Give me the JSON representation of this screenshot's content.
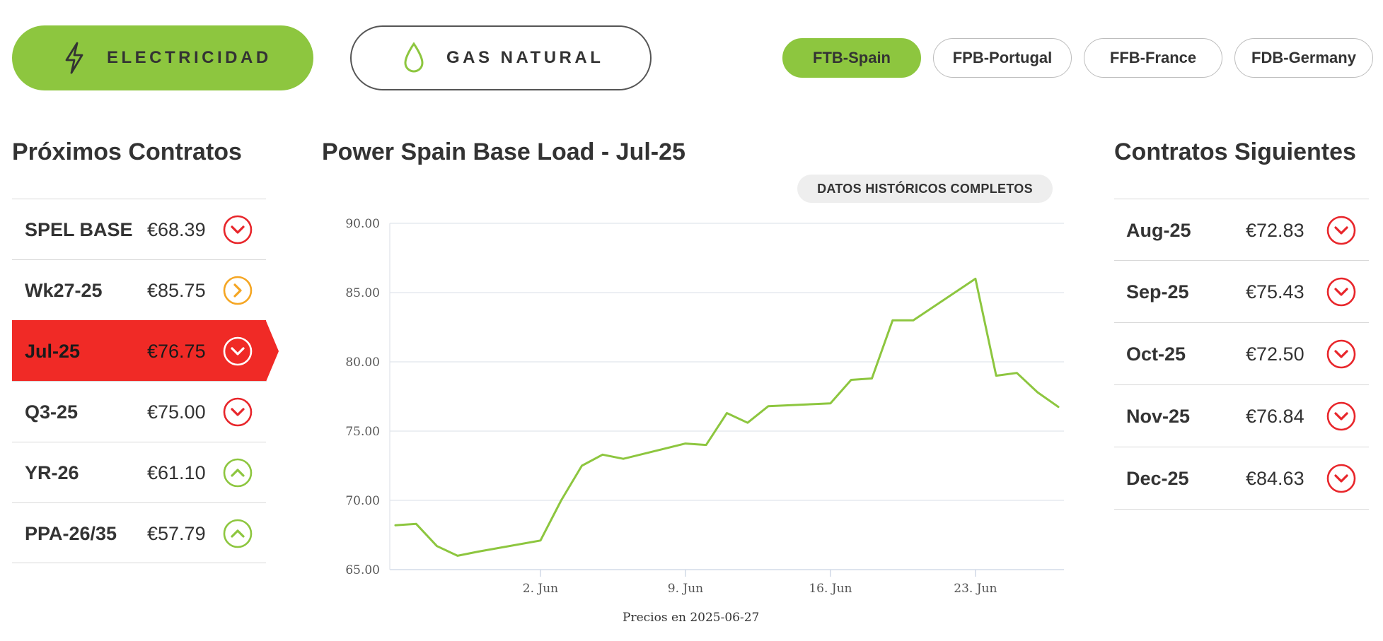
{
  "commodities": [
    {
      "label": "ELECTRICIDAD",
      "icon": "lightning-icon",
      "active": true
    },
    {
      "label": "GAS NATURAL",
      "icon": "droplet-icon",
      "active": false
    }
  ],
  "markets": [
    {
      "label": "FTB-Spain",
      "active": true
    },
    {
      "label": "FPB-Portugal",
      "active": false
    },
    {
      "label": "FFB-France",
      "active": false
    },
    {
      "label": "FDB-Germany",
      "active": false
    }
  ],
  "left_panel": {
    "title": "Próximos Contratos",
    "items": [
      {
        "name": "SPEL BASE",
        "price": "€68.39",
        "trend": "down",
        "active": false
      },
      {
        "name": "Wk27-25",
        "price": "€85.75",
        "trend": "flat",
        "active": false
      },
      {
        "name": "Jul-25",
        "price": "€76.75",
        "trend": "down",
        "active": true
      },
      {
        "name": "Q3-25",
        "price": "€75.00",
        "trend": "down",
        "active": false
      },
      {
        "name": "YR-26",
        "price": "€61.10",
        "trend": "up",
        "active": false
      },
      {
        "name": "PPA-26/35",
        "price": "€57.79",
        "trend": "up",
        "active": false
      }
    ]
  },
  "right_panel": {
    "title": "Contratos Siguientes",
    "items": [
      {
        "name": "Aug-25",
        "price": "€72.83",
        "trend": "down"
      },
      {
        "name": "Sep-25",
        "price": "€75.43",
        "trend": "down"
      },
      {
        "name": "Oct-25",
        "price": "€72.50",
        "trend": "down"
      },
      {
        "name": "Nov-25",
        "price": "€76.84",
        "trend": "down"
      },
      {
        "name": "Dec-25",
        "price": "€84.63",
        "trend": "down"
      }
    ]
  },
  "history_button": "DATOS HISTÓRICOS COMPLETOS",
  "footnote": "Precios en 2025-06-27",
  "colors": {
    "brand_green": "#8dc63f",
    "down_red": "#e8262b",
    "flat_orange": "#f5a623",
    "active_row": "#f02a26"
  },
  "chart_data": {
    "type": "line",
    "title": "Power Spain Base Load - Jul-25",
    "xlabel": "",
    "ylabel": "",
    "ylim": [
      65,
      90
    ],
    "y_ticks": [
      "90.00",
      "85.00",
      "80.00",
      "75.00",
      "70.00",
      "65.00"
    ],
    "y_tick_values": [
      90,
      85,
      80,
      75,
      70,
      65
    ],
    "x_ticks": [
      {
        "label": "2. Jun",
        "date": "2025-06-02"
      },
      {
        "label": "9. Jun",
        "date": "2025-06-09"
      },
      {
        "label": "16. Jun",
        "date": "2025-06-16"
      },
      {
        "label": "23. Jun",
        "date": "2025-06-23"
      }
    ],
    "xlim": [
      "2025-05-26",
      "2025-06-27"
    ],
    "grid": true,
    "series": [
      {
        "color": "#8dc63f",
        "points": [
          {
            "x": "2025-05-26",
            "y": 68.2
          },
          {
            "x": "2025-05-27",
            "y": 68.3
          },
          {
            "x": "2025-05-28",
            "y": 66.7
          },
          {
            "x": "2025-05-29",
            "y": 66.0
          },
          {
            "x": "2025-05-30",
            "y": 66.3
          },
          {
            "x": "2025-06-02",
            "y": 67.1
          },
          {
            "x": "2025-06-03",
            "y": 70.0
          },
          {
            "x": "2025-06-04",
            "y": 72.5
          },
          {
            "x": "2025-06-05",
            "y": 73.3
          },
          {
            "x": "2025-06-06",
            "y": 73.0
          },
          {
            "x": "2025-06-09",
            "y": 74.1
          },
          {
            "x": "2025-06-10",
            "y": 74.0
          },
          {
            "x": "2025-06-11",
            "y": 76.3
          },
          {
            "x": "2025-06-12",
            "y": 75.6
          },
          {
            "x": "2025-06-13",
            "y": 76.8
          },
          {
            "x": "2025-06-16",
            "y": 77.0
          },
          {
            "x": "2025-06-17",
            "y": 78.7
          },
          {
            "x": "2025-06-18",
            "y": 78.8
          },
          {
            "x": "2025-06-19",
            "y": 83.0
          },
          {
            "x": "2025-06-20",
            "y": 83.0
          },
          {
            "x": "2025-06-23",
            "y": 86.0
          },
          {
            "x": "2025-06-24",
            "y": 79.0
          },
          {
            "x": "2025-06-25",
            "y": 79.2
          },
          {
            "x": "2025-06-26",
            "y": 77.8
          },
          {
            "x": "2025-06-27",
            "y": 76.75
          }
        ]
      }
    ]
  }
}
